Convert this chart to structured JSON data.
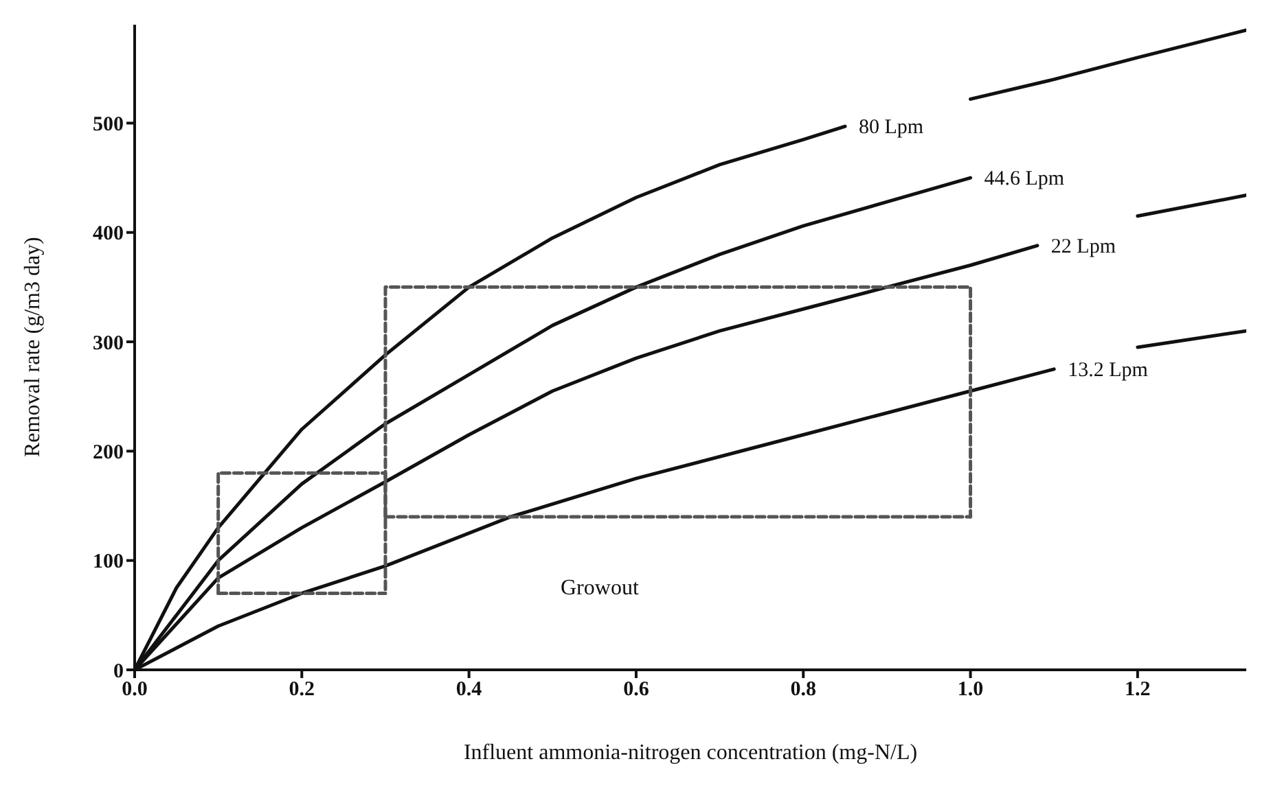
{
  "chart_data": {
    "type": "line",
    "xlabel": "Influent ammonia-nitrogen concentration (mg-N/L)",
    "ylabel": "Removal rate (g/m3 day)",
    "xlim": [
      0,
      1.33
    ],
    "xticks": [
      {
        "value": 0,
        "label": "0.0"
      },
      0.2,
      0.4,
      0.6,
      0.8,
      {
        "value": 1,
        "label": "1.0"
      },
      1.2
    ],
    "ylim": [
      0,
      590
    ],
    "yticks": [
      0,
      100,
      200,
      300,
      400,
      500
    ],
    "grid": false,
    "legend": false,
    "marker": "none",
    "line_style": "solid",
    "series": [
      {
        "name": "80 Lpm",
        "color": "#111111",
        "x": [
          0,
          0.05,
          0.1,
          0.2,
          0.3,
          0.4,
          0.5,
          0.6,
          0.7,
          0.8,
          0.85,
          0.93,
          1.0,
          1.1,
          1.2,
          1.33
        ],
        "values": [
          0,
          75,
          130,
          220,
          288,
          350,
          395,
          432,
          462,
          485,
          497,
          null,
          522,
          540,
          560,
          585
        ]
      },
      {
        "name": "44.6 Lpm",
        "color": "#111111",
        "x": [
          0,
          0.1,
          0.2,
          0.3,
          0.4,
          0.5,
          0.6,
          0.7,
          0.8,
          0.9,
          1.0
        ],
        "values": [
          0,
          100,
          170,
          225,
          270,
          315,
          350,
          380,
          406,
          428,
          450
        ]
      },
      {
        "name": "22 Lpm",
        "color": "#111111",
        "x": [
          0,
          0.1,
          0.2,
          0.3,
          0.4,
          0.5,
          0.6,
          0.7,
          0.8,
          0.9,
          1.0,
          1.08,
          1.14,
          1.2,
          1.33
        ],
        "values": [
          0,
          84,
          130,
          172,
          215,
          255,
          285,
          310,
          330,
          350,
          370,
          388,
          null,
          415,
          434
        ]
      },
      {
        "name": "13.2 Lpm",
        "color": "#111111",
        "x": [
          0,
          0.1,
          0.2,
          0.3,
          0.45,
          0.6,
          0.8,
          1.0,
          1.1,
          1.16,
          1.2,
          1.33
        ],
        "values": [
          0,
          40,
          70,
          95,
          140,
          175,
          215,
          255,
          275,
          null,
          295,
          310
        ]
      },
      {
        "color": "#555555",
        "line_style": "dashed",
        "x": [
          0.3,
          0.3,
          1.0,
          1.0
        ],
        "values": [
          140,
          350,
          350,
          140
        ]
      },
      {
        "color": "#555555",
        "line_style": "dashed",
        "x": [
          0.3,
          1.0
        ],
        "values": [
          140,
          140
        ]
      },
      {
        "color": "#555555",
        "line_style": "dashed",
        "x": [
          0.1,
          0.1,
          0.3,
          0.3
        ],
        "values": [
          70,
          180,
          180,
          70
        ]
      },
      {
        "color": "#555555",
        "line_style": "dashed",
        "x": [
          0.1,
          0.3
        ],
        "values": [
          70,
          70
        ]
      }
    ],
    "annotations": [
      "Growout"
    ]
  }
}
